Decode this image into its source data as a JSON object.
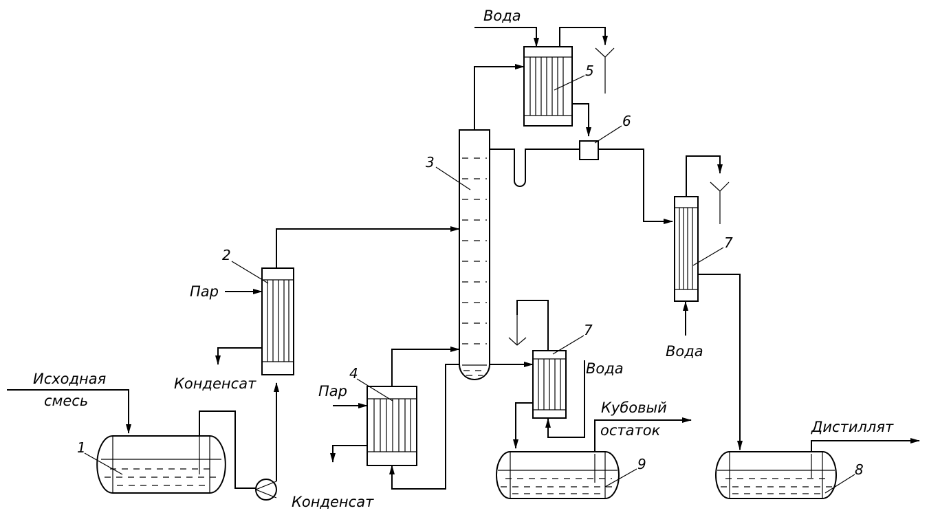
{
  "labels": {
    "feed_line1": "Исходная",
    "feed_line2": "смесь",
    "steam_heater": "Пар",
    "condensate_heater": "Конденсат",
    "steam_boiler": "Пар",
    "condensate_boiler": "Конденсат",
    "water_top": "Вода",
    "water_right": "Вода",
    "water_bottom_cooler": "Вода",
    "bottoms_line1": "Кубовый",
    "bottoms_line2": "остаток",
    "distillate": "Дистиллят"
  },
  "numbers": {
    "tank1": "1",
    "heater2": "2",
    "column3": "3",
    "boiler4": "4",
    "condenser5": "5",
    "divider6": "6",
    "cooler7_right": "7",
    "cooler7_bottom": "7",
    "tank8": "8",
    "tank9": "9"
  }
}
